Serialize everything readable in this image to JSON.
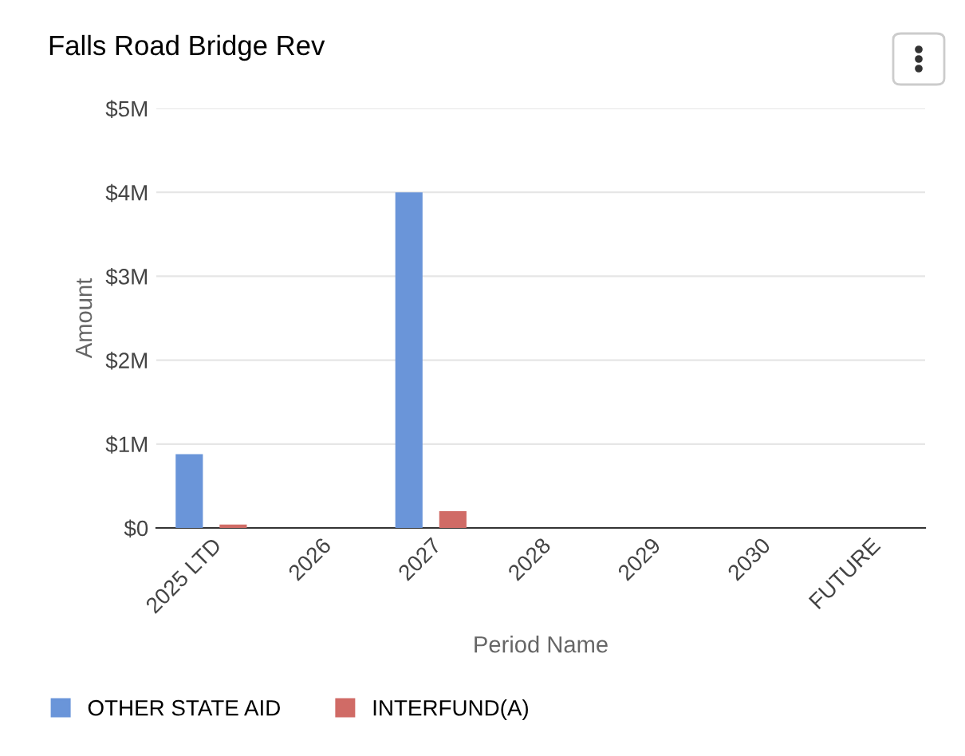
{
  "chart_data": {
    "type": "bar",
    "title": "Falls Road Bridge Rev",
    "xlabel": "Period Name",
    "ylabel": "Amount",
    "categories": [
      "2025 LTD",
      "2026",
      "2027",
      "2028",
      "2029",
      "2030",
      "FUTURE"
    ],
    "series": [
      {
        "name": "OTHER STATE AID",
        "color": "#6a95d9",
        "values": [
          0.88,
          0,
          4.0,
          0,
          0,
          0,
          0
        ]
      },
      {
        "name": "INTERFUND(A)",
        "color": "#d06b66",
        "values": [
          0.04,
          0,
          0.2,
          0,
          0,
          0,
          0
        ]
      }
    ],
    "ylim": [
      0,
      5
    ],
    "yticks": [
      {
        "value": 0,
        "label": "$0"
      },
      {
        "value": 1,
        "label": "$1M"
      },
      {
        "value": 2,
        "label": "$2M"
      },
      {
        "value": 3,
        "label": "$3M"
      },
      {
        "value": 4,
        "label": "$4M"
      },
      {
        "value": 5,
        "label": "$5M"
      }
    ],
    "grid": "y",
    "legend": "bottom left"
  }
}
